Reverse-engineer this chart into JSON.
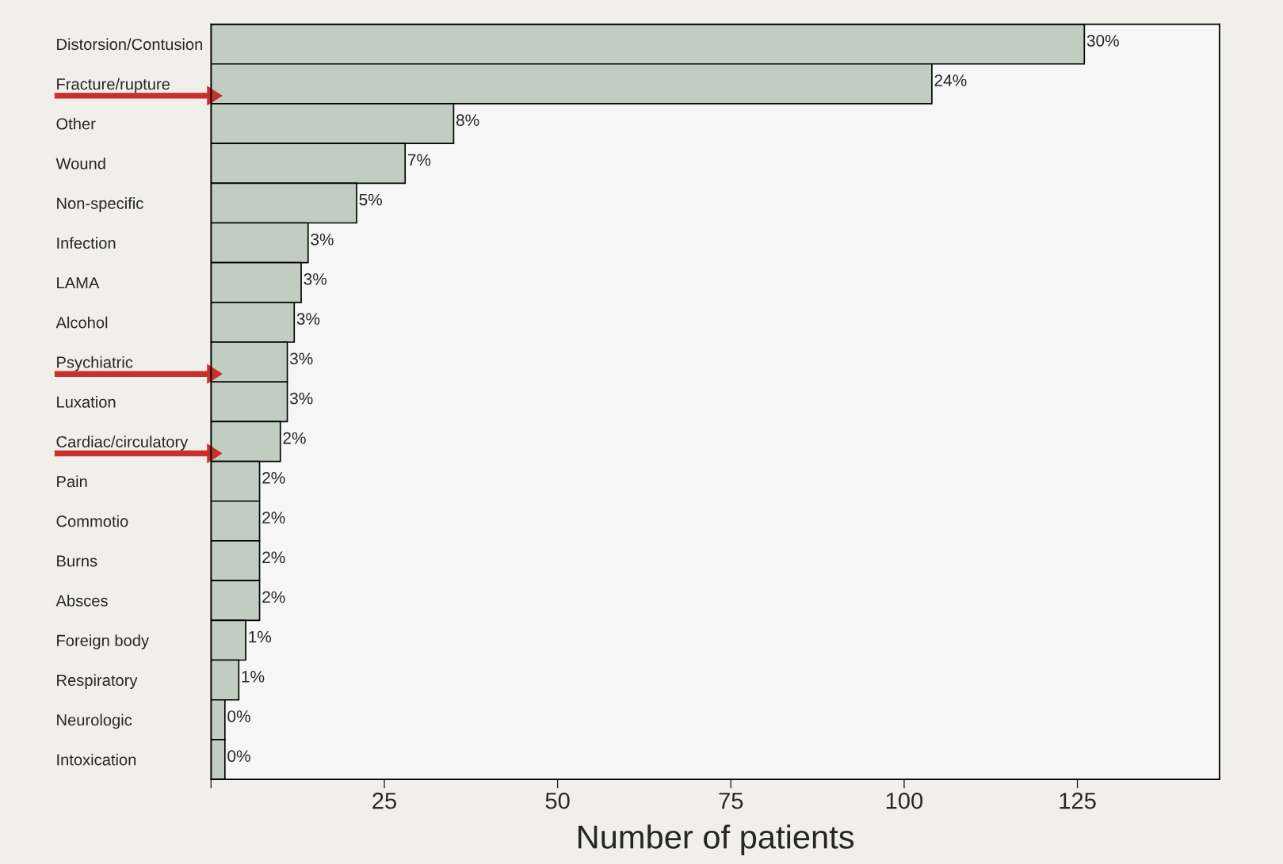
{
  "chart_data": {
    "type": "bar",
    "orientation": "horizontal",
    "xlabel": "Number of patients",
    "categories": [
      "Distorsion/Contusion",
      "Fracture/rupture",
      "Other",
      "Wound",
      "Non-specific",
      "Infection",
      "LAMA",
      "Alcohol",
      "Psychiatric",
      "Luxation",
      "Cardiac/circulatory",
      "Pain",
      "Commotio",
      "Burns",
      "Absces",
      "Foreign body",
      "Respiratory",
      "Neurologic",
      "Intoxication"
    ],
    "values": [
      126,
      104,
      35,
      28,
      21,
      14,
      13,
      12,
      11,
      11,
      10,
      7,
      7,
      7,
      7,
      5,
      4,
      2,
      2
    ],
    "annotations": [
      {
        "text": "30%",
        "x": 126,
        "y": "Distorsion/Contusion"
      },
      {
        "text": "24%",
        "x": 104,
        "y": "Fracture/rupture"
      },
      {
        "text": "8%",
        "x": 35,
        "y": "Other"
      },
      {
        "text": "7%",
        "x": 28,
        "y": "Wound"
      },
      {
        "text": "5%",
        "x": 21,
        "y": "Non-specific"
      },
      {
        "text": "3%",
        "x": 14,
        "y": "Infection"
      },
      {
        "text": "3%",
        "x": 13,
        "y": "LAMA"
      },
      {
        "text": "3%",
        "x": 12,
        "y": "Alcohol"
      },
      {
        "text": "3%",
        "x": 11,
        "y": "Psychiatric"
      },
      {
        "text": "3%",
        "x": 11,
        "y": "Luxation"
      },
      {
        "text": "2%",
        "x": 10,
        "y": "Cardiac/circulatory"
      },
      {
        "text": "2%",
        "x": 7,
        "y": "Pain"
      },
      {
        "text": "2%",
        "x": 7,
        "y": "Commotio"
      },
      {
        "text": "2%",
        "x": 7,
        "y": "Burns"
      },
      {
        "text": "2%",
        "x": 7,
        "y": "Absces"
      },
      {
        "text": "1%",
        "x": 5,
        "y": "Foreign body"
      },
      {
        "text": "1%",
        "x": 4,
        "y": "Respiratory"
      },
      {
        "text": "0%",
        "x": 2,
        "y": "Neurologic"
      },
      {
        "text": "0%",
        "x": 2,
        "y": "Intoxication"
      }
    ],
    "color": "#c2cdc1",
    "xlim": [
      0,
      145.5
    ],
    "xticks": [
      {
        "value": 0,
        "label": null
      },
      25,
      50,
      75,
      100,
      125
    ],
    "grid": false
  }
}
